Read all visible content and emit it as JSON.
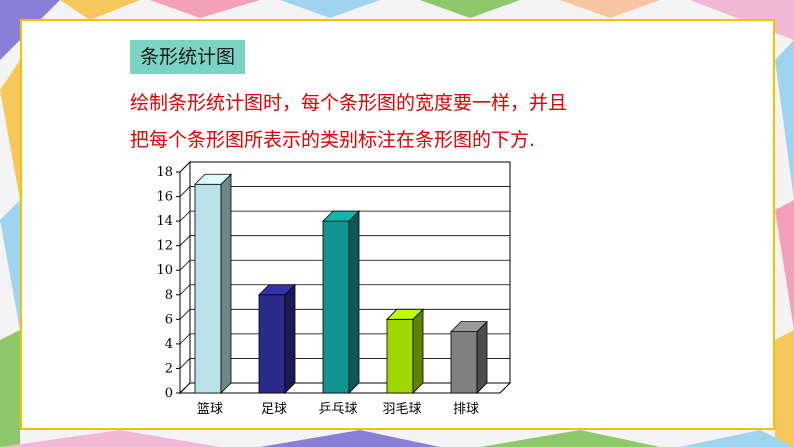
{
  "header": {
    "tag_label": "条形统计图",
    "note_line1": "绘制条形统计图时，每个条形图的宽度要一样，并且",
    "note_line2": "把每个条形图所表示的类别标注在条形图的下方."
  },
  "chart_data": {
    "type": "bar",
    "categories": [
      "篮球",
      "足球",
      "乒乓球",
      "羽毛球",
      "排球"
    ],
    "values": [
      17,
      8,
      14,
      6,
      5
    ],
    "title": "",
    "xlabel": "",
    "ylabel": "",
    "ylim": [
      0,
      18
    ],
    "yticks": [
      0,
      2,
      4,
      6,
      8,
      10,
      12,
      14,
      16,
      18
    ],
    "grid": true,
    "legend": "none",
    "colors": [
      "#b9e3e8",
      "#2b2b8c",
      "#12958e",
      "#9fd800",
      "#808080"
    ]
  }
}
